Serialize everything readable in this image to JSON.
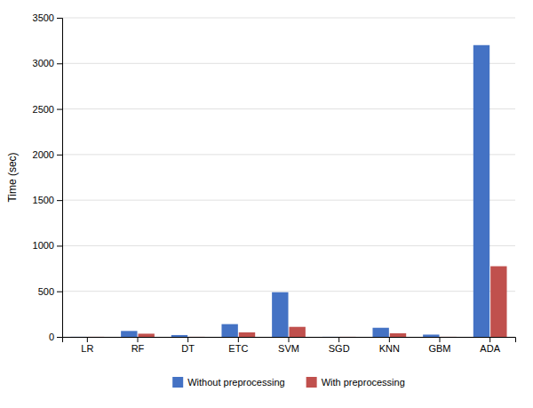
{
  "chart_data": {
    "type": "bar",
    "ylabel": "Time (sec)",
    "categories": [
      "LR",
      "RF",
      "DT",
      "ETC",
      "SVM",
      "SGD",
      "KNN",
      "GBM",
      "ADA"
    ],
    "series": [
      {
        "name": "Without preprocessing",
        "color": "#4472C4",
        "values": [
          1,
          65,
          20,
          140,
          490,
          1,
          100,
          25,
          3200
        ]
      },
      {
        "name": "With preprocessing",
        "color": "#C0504D",
        "values": [
          1,
          35,
          1,
          50,
          110,
          1,
          40,
          1,
          775
        ]
      }
    ],
    "ylim": [
      0,
      3500
    ],
    "yticks": [
      0,
      500,
      1000,
      1500,
      2000,
      2500,
      3000,
      3500
    ],
    "grid": true,
    "legend": "bottom"
  }
}
